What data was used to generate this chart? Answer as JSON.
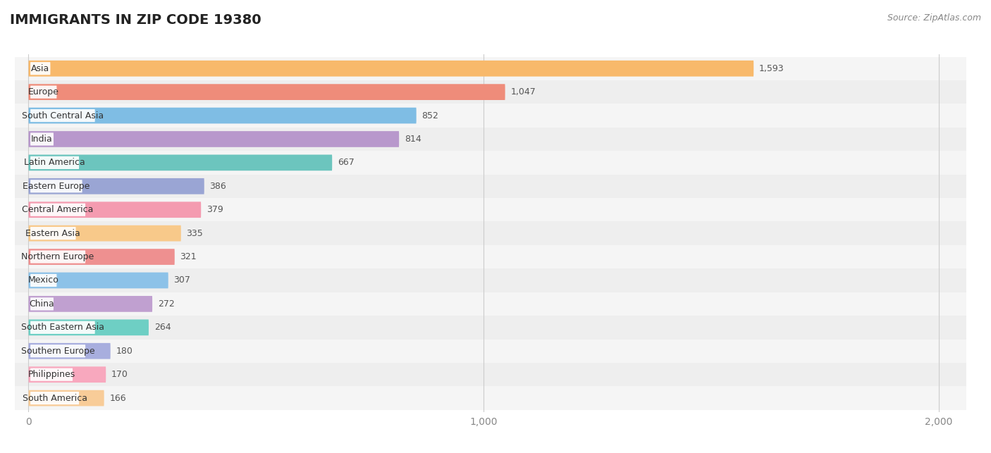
{
  "title": "IMMIGRANTS IN ZIP CODE 19380",
  "source": "Source: ZipAtlas.com",
  "categories": [
    "Asia",
    "Europe",
    "South Central Asia",
    "India",
    "Latin America",
    "Eastern Europe",
    "Central America",
    "Eastern Asia",
    "Northern Europe",
    "Mexico",
    "China",
    "South Eastern Asia",
    "Southern Europe",
    "Philippines",
    "South America"
  ],
  "values": [
    1593,
    1047,
    852,
    814,
    667,
    386,
    379,
    335,
    321,
    307,
    272,
    264,
    180,
    170,
    166
  ],
  "bar_colors": [
    "#F8B96B",
    "#EF8C7A",
    "#7FBDE4",
    "#B898CC",
    "#6CC5BE",
    "#9AA5D4",
    "#F49BB0",
    "#F8C98A",
    "#EE9090",
    "#8DC2E8",
    "#C0A0D0",
    "#6ECFC4",
    "#A8AEDE",
    "#F8A8BE",
    "#F8CC98"
  ],
  "bg_color": "#ffffff",
  "xlim": [
    0,
    2000
  ],
  "xticks": [
    0,
    1000,
    2000
  ],
  "xticklabels": [
    "0",
    "1,000",
    "2,000"
  ],
  "row_colors": [
    "#f5f5f5",
    "#eeeeee"
  ],
  "value_label_color": "#555555",
  "title_color": "#222222",
  "category_label_color": "#333333"
}
